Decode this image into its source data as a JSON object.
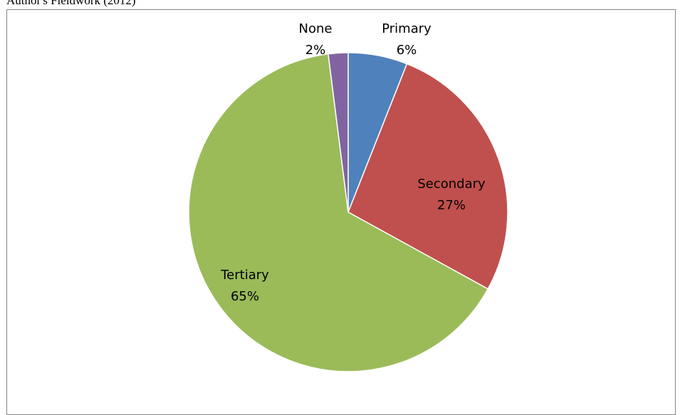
{
  "caption": "Author's Fieldwork (2012)",
  "chart_data": {
    "type": "pie",
    "categories": [
      "Primary",
      "Secondary",
      "Tertiary",
      "None"
    ],
    "values": [
      6,
      27,
      65,
      2
    ],
    "value_labels": [
      "6%",
      "27%",
      "65%",
      "2%"
    ],
    "colors": [
      "#4F81BD",
      "#C0504D",
      "#9BBB59",
      "#8064A2"
    ],
    "title": "",
    "legend": "none",
    "labels_position": "data-labels"
  }
}
